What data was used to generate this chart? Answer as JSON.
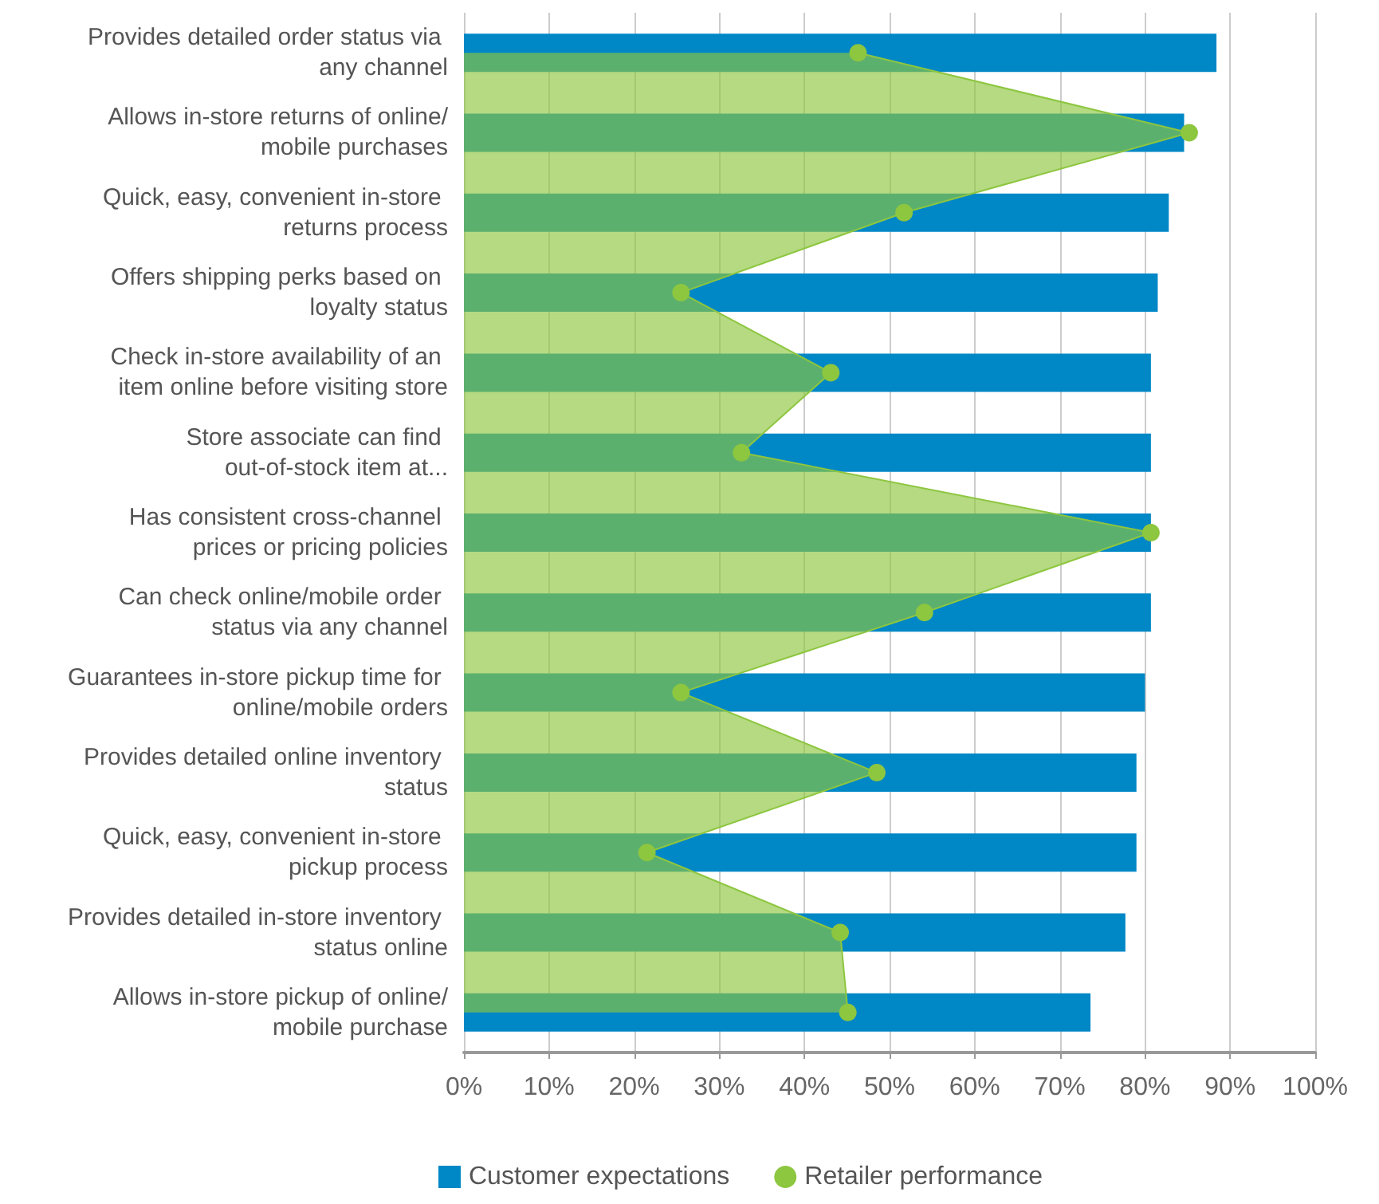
{
  "chart_data": {
    "type": "bar",
    "orientation": "horizontal",
    "categories": [
      "Provides detailed order status via any channel",
      "Allows in-store returns of online/mobile purchases",
      "Quick, easy, convenient in-store returns process",
      "Offers shipping perks based on loyalty status",
      "Check in-store availability of an item online before visiting store",
      "Store associate can find out-of-stock item at...",
      "Has consistent cross-channel prices or pricing policies",
      "Can check online/mobile order status via any channel",
      "Guarantees in-store pickup time for online/mobile orders",
      "Provides detailed online inventory status",
      "Quick, easy, convenient in-store pickup process",
      "Provides detailed in-store inventory status online",
      "Allows in-store pickup of online/mobile purchase"
    ],
    "series": [
      {
        "name": "Customer expectations",
        "color": "#0087c6",
        "values": [
          88.4,
          84.6,
          82.8,
          81.5,
          80.7,
          80.7,
          80.7,
          80.7,
          80,
          79,
          79,
          77.7,
          73.6
        ]
      },
      {
        "name": "Retailer performance",
        "type": "area",
        "color": "#8dc63f",
        "values": [
          46.3,
          85.2,
          51.7,
          25.5,
          43.1,
          32.6,
          80.7,
          54.1,
          25.5,
          48.5,
          21.5,
          44.2,
          45.1
        ]
      }
    ],
    "xlim": [
      0,
      100
    ],
    "xticks": [
      {
        "value": 0,
        "label": "0%"
      },
      {
        "value": 10,
        "label": "10%"
      },
      {
        "value": 20,
        "label": "20%"
      },
      {
        "value": 30,
        "label": "30%"
      },
      {
        "value": 40,
        "label": "40%"
      },
      {
        "value": 50,
        "label": "50%"
      },
      {
        "value": 60,
        "label": "60%"
      },
      {
        "value": 70,
        "label": "70%"
      },
      {
        "value": 80,
        "label": "80%"
      },
      {
        "value": 90,
        "label": "90%"
      },
      {
        "value": 100,
        "label": "100%"
      }
    ],
    "grid": "x",
    "legend": "bottom",
    "marker": "circle"
  }
}
